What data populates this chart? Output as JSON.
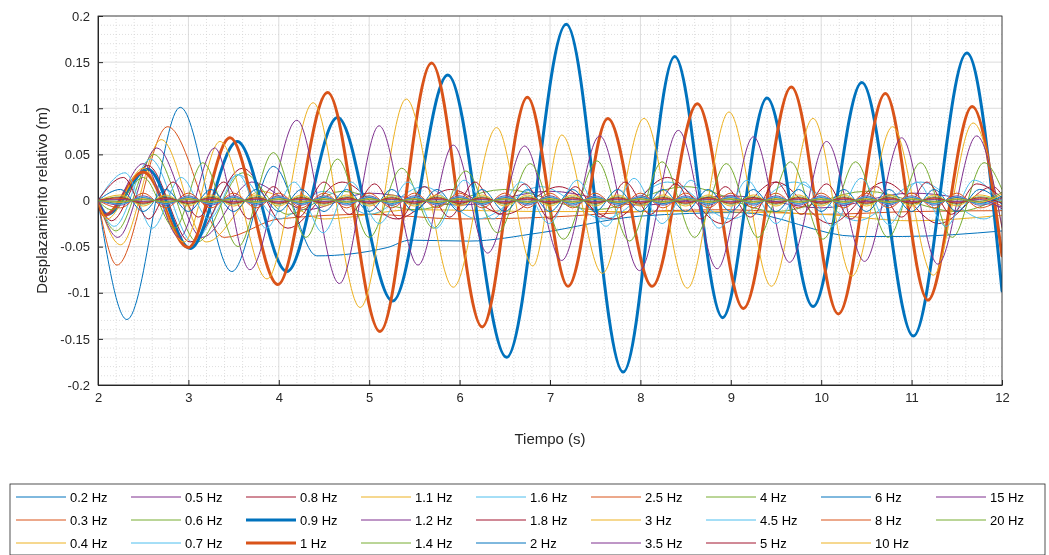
{
  "chart_data": {
    "type": "line",
    "xlabel": "Tiempo (s)",
    "ylabel": "Desplazamiento relativo (m)",
    "xlim": [
      2,
      12
    ],
    "ylim": [
      -0.2,
      0.2
    ],
    "xticks": [
      2,
      3,
      4,
      5,
      6,
      7,
      8,
      9,
      10,
      11,
      12
    ],
    "yticks": [
      -0.2,
      -0.15,
      -0.1,
      -0.05,
      0,
      0.05,
      0.1,
      0.15,
      0.2
    ],
    "grid": true,
    "legend": "bottom",
    "line_style": "solid",
    "marker": "none",
    "x": [
      2,
      2.25,
      2.5,
      2.75,
      3,
      3.25,
      3.5,
      3.75,
      4,
      4.25,
      4.5,
      4.75,
      5,
      5.25,
      5.5,
      5.75,
      6,
      6.25,
      6.5,
      6.75,
      7,
      7.25,
      7.5,
      7.75,
      8,
      8.25,
      8.5,
      8.75,
      9,
      9.25,
      9.5,
      9.75,
      10,
      10.25,
      10.5,
      10.75,
      11,
      11.25,
      11.5,
      11.75,
      12
    ],
    "series": [
      {
        "name": "0.2 Hz",
        "color": "#0072bd",
        "x": [
          2,
          2.32,
          2.91,
          3.48,
          3.94,
          4.42,
          5.2,
          5.45,
          6.1,
          6.89,
          7.99,
          9.1,
          10.4,
          10.9,
          12
        ],
        "values": [
          0,
          -0.129,
          0.101,
          -0.077,
          0.037,
          -0.06,
          -0.051,
          -0.043,
          -0.044,
          -0.035,
          -0.017,
          -0.013,
          -0.039,
          -0.039,
          -0.033
        ]
      },
      {
        "name": "0.3 Hz",
        "color": "#d95319",
        "x": [
          2,
          2.21,
          2.77,
          3.4,
          4.0,
          5,
          6,
          7,
          8,
          9,
          10,
          11,
          12
        ],
        "values": [
          0,
          -0.07,
          0.08,
          -0.04,
          -0.02,
          -0.015,
          -0.02,
          -0.018,
          -0.012,
          -0.01,
          -0.015,
          -0.012,
          -0.011
        ]
      },
      {
        "name": "0.4 Hz",
        "color": "#edb120",
        "x": [
          2,
          2.25,
          2.7,
          3.2,
          3.8,
          4.5,
          5.5,
          7,
          8.5,
          10,
          11,
          12
        ],
        "values": [
          0,
          -0.048,
          0.066,
          -0.045,
          0.01,
          -0.02,
          -0.01,
          -0.012,
          -0.012,
          -0.015,
          -0.022,
          -0.016
        ]
      },
      {
        "name": "0.5 Hz",
        "color": "#7e2f8e",
        "x": [
          2,
          2.22,
          2.65,
          3.15,
          3.7,
          4.3,
          5,
          6,
          7,
          8,
          9,
          10,
          11,
          12
        ],
        "values": [
          0,
          -0.04,
          0.057,
          -0.04,
          0.02,
          -0.01,
          0.008,
          -0.005,
          0.01,
          -0.005,
          0.005,
          -0.008,
          0.008,
          -0.007
        ]
      },
      {
        "name": "0.6 Hz",
        "color": "#77ac30",
        "x": [
          2,
          2.2,
          2.62,
          3.1,
          3.6,
          4.1,
          4.7,
          5.5,
          6.5,
          7.5,
          8.5,
          9.5,
          10.5,
          11.5,
          12
        ],
        "values": [
          0,
          -0.033,
          0.05,
          -0.045,
          0.03,
          -0.015,
          0.01,
          -0.01,
          0.012,
          -0.01,
          0.015,
          -0.012,
          0.01,
          -0.012,
          0.004
        ]
      },
      {
        "name": "0.7 Hz",
        "color": "#4dbeee",
        "x": [
          2,
          2.18,
          2.58,
          3.05,
          3.55,
          4.0,
          4.5,
          5,
          5.6,
          6.2,
          6.9,
          7.6,
          8.3,
          9,
          9.7,
          10.4,
          11.1,
          11.8,
          12
        ],
        "values": [
          0,
          -0.028,
          0.045,
          -0.045,
          0.028,
          -0.02,
          0.01,
          -0.015,
          0.015,
          -0.02,
          0.015,
          -0.02,
          0.02,
          -0.02,
          0.02,
          -0.022,
          0.02,
          -0.02,
          -0.008
        ]
      },
      {
        "name": "0.8 Hz",
        "color": "#a2142f",
        "x": [
          2,
          2.15,
          2.55,
          3.02,
          3.6,
          4.1,
          4.7,
          5.3,
          5.9,
          6.5,
          7.1,
          7.7,
          8.3,
          8.9,
          9.5,
          10.1,
          10.7,
          11.3,
          11.9,
          12
        ],
        "values": [
          0,
          -0.022,
          0.038,
          -0.045,
          0.035,
          -0.03,
          0.02,
          -0.02,
          0.012,
          -0.015,
          0.015,
          -0.02,
          0.025,
          -0.025,
          0.02,
          -0.025,
          0.02,
          -0.025,
          0.015,
          0.006
        ]
      },
      {
        "name": "0.9 Hz",
        "color": "#0072bd",
        "x": [
          2,
          2.1,
          2.55,
          3.02,
          3.54,
          4.09,
          4.65,
          5.26,
          5.87,
          6.52,
          7.18,
          7.81,
          8.38,
          8.91,
          9.4,
          9.91,
          10.45,
          11.02,
          11.61,
          12
        ],
        "values": [
          0,
          -0.015,
          0.034,
          -0.052,
          0.064,
          -0.077,
          0.09,
          -0.109,
          0.136,
          -0.17,
          0.191,
          -0.186,
          0.156,
          -0.127,
          0.111,
          -0.115,
          0.128,
          -0.147,
          0.16,
          -0.098
        ]
      },
      {
        "name": "1 Hz",
        "color": "#d95319",
        "x": [
          2,
          2.07,
          2.5,
          3,
          3.46,
          3.99,
          4.54,
          5.12,
          5.69,
          6.25,
          6.75,
          7.2,
          7.64,
          8.13,
          8.63,
          9.14,
          9.67,
          10.19,
          10.71,
          11.18,
          11.67,
          12
        ],
        "values": [
          0,
          -0.016,
          0.031,
          -0.051,
          0.068,
          -0.091,
          0.117,
          -0.142,
          0.149,
          -0.137,
          0.112,
          -0.093,
          0.089,
          -0.093,
          0.105,
          -0.117,
          0.123,
          -0.123,
          0.116,
          -0.108,
          0.102,
          -0.06
        ]
      },
      {
        "name": "1.1 Hz",
        "color": "#edb120",
        "x": [
          2,
          2.1,
          2.5,
          2.95,
          3.35,
          3.87,
          4.38,
          4.9,
          5.41,
          5.93,
          6.41,
          6.81,
          7.13,
          7.58,
          8.04,
          8.52,
          8.98,
          9.45,
          9.91,
          10.34,
          10.79,
          11.24,
          11.68,
          12
        ],
        "values": [
          0,
          -0.02,
          0.035,
          -0.045,
          0.064,
          -0.085,
          0.106,
          -0.116,
          0.11,
          -0.094,
          0.079,
          -0.071,
          0.071,
          -0.079,
          0.089,
          -0.095,
          0.096,
          -0.093,
          0.089,
          -0.082,
          0.08,
          -0.081,
          0.084,
          -0.03
        ]
      },
      {
        "name": "1.2 Hz",
        "color": "#7e2f8e",
        "x": [
          2,
          2.1,
          2.5,
          2.9,
          3.29,
          3.68,
          4.2,
          4.67,
          5.11,
          5.54,
          5.93,
          6.31,
          6.72,
          7.13,
          7.55,
          7.99,
          8.42,
          8.85,
          9.25,
          9.65,
          10.06,
          10.48,
          10.89,
          11.29,
          11.72,
          12
        ],
        "values": [
          0,
          -0.015,
          0.04,
          -0.04,
          0.057,
          -0.075,
          0.087,
          -0.09,
          0.081,
          -0.07,
          0.06,
          -0.057,
          0.059,
          -0.065,
          0.07,
          -0.076,
          0.076,
          -0.074,
          0.069,
          -0.067,
          0.064,
          -0.066,
          0.068,
          -0.069,
          0.07,
          -0.029
        ]
      },
      {
        "name": "1.4 Hz",
        "color": "#77ac30",
        "x": [
          2,
          2.15,
          2.5,
          2.85,
          3.16,
          3.55,
          3.94,
          4.3,
          4.65,
          5.0,
          5.36,
          5.71,
          6.07,
          6.42,
          6.78,
          7.15,
          7.52,
          7.88,
          8.24,
          8.6,
          8.95,
          9.3,
          9.66,
          10.02,
          10.38,
          10.74,
          11.1,
          11.45,
          11.8,
          12
        ],
        "values": [
          0,
          -0.01,
          0.025,
          -0.03,
          0.041,
          -0.05,
          0.052,
          -0.04,
          0.045,
          -0.04,
          0.035,
          -0.03,
          0.032,
          -0.035,
          0.04,
          -0.042,
          0.043,
          -0.044,
          0.042,
          -0.04,
          0.04,
          -0.04,
          0.042,
          -0.042,
          0.042,
          -0.04,
          0.041,
          -0.04,
          0.041,
          0.012
        ]
      },
      {
        "name": "1.6 Hz",
        "color": "#4dbeee",
        "x": [
          2,
          2.3,
          2.6,
          2.92,
          3.23,
          3.55,
          3.86,
          4.17,
          4.49,
          4.8,
          5.11,
          5.43,
          5.74,
          6.05,
          6.37,
          6.68,
          6.99,
          7.3,
          7.62,
          7.93,
          8.24,
          8.56,
          8.87,
          9.18,
          9.5,
          9.81,
          10.12,
          10.44,
          10.75,
          11.06,
          11.38,
          11.69,
          12
        ],
        "values": [
          0,
          0.03,
          -0.03,
          0.025,
          -0.02,
          0.028,
          -0.03,
          0.02,
          -0.035,
          0.02,
          -0.025,
          0.02,
          -0.03,
          0.022,
          -0.02,
          0.02,
          -0.025,
          0.022,
          -0.028,
          0.024,
          -0.025,
          0.022,
          -0.03,
          0.022,
          -0.025,
          0.02,
          -0.028,
          0.024,
          -0.026,
          0.02,
          -0.028,
          0.022,
          -0.005
        ]
      },
      {
        "name": "1.8 Hz",
        "color": "#a2142f",
        "x": [
          2,
          2.28,
          2.56,
          2.83,
          3.11,
          3.39,
          3.67,
          3.94,
          4.22,
          4.5,
          4.78,
          5.06,
          5.33,
          5.61,
          5.89,
          6.17,
          6.44,
          6.72,
          7,
          7.28,
          7.56,
          7.83,
          8.11,
          8.39,
          8.67,
          8.94,
          9.22,
          9.5,
          9.78,
          10.06,
          10.33,
          10.61,
          10.89,
          11.17,
          11.44,
          11.72,
          12
        ],
        "values": [
          0,
          0.025,
          -0.02,
          0.02,
          -0.018,
          0.02,
          -0.02,
          0.015,
          -0.018,
          0.02,
          -0.015,
          0.018,
          -0.02,
          0.015,
          -0.018,
          0.02,
          -0.015,
          0.018,
          -0.02,
          0.015,
          -0.018,
          0.02,
          -0.015,
          0.018,
          -0.02,
          0.015,
          -0.018,
          0.02,
          -0.015,
          0.018,
          -0.02,
          0.015,
          -0.018,
          0.02,
          -0.015,
          0.018,
          0.003
        ]
      },
      {
        "name": "2 Hz",
        "color": "#0072bd",
        "values": [
          0,
          0.012,
          -0.012,
          0.012,
          -0.012,
          0.012,
          -0.012,
          0.012,
          -0.012,
          0.012,
          -0.012,
          0.012,
          -0.012,
          0.012,
          -0.012,
          0.012,
          -0.012,
          0.012,
          -0.012,
          0.012,
          -0.012,
          0.012,
          -0.012,
          0.012,
          -0.012,
          0.012,
          -0.012,
          0.012,
          -0.012,
          0.012,
          -0.012,
          0.012,
          -0.012,
          0.012,
          -0.012,
          0.012,
          -0.012,
          0.012,
          -0.012,
          0.012,
          -0.004
        ]
      },
      {
        "name": "2.5 Hz",
        "color": "#d95319",
        "values": [
          0,
          -0.008,
          0.008,
          -0.008,
          0.008,
          -0.008,
          0.008,
          -0.008,
          0.008,
          -0.008,
          0.008,
          -0.008,
          0.008,
          -0.008,
          0.008,
          -0.008,
          0.008,
          -0.008,
          0.008,
          -0.008,
          0.008,
          -0.008,
          0.008,
          -0.008,
          0.008,
          -0.008,
          0.008,
          -0.008,
          0.008,
          -0.008,
          0.008,
          -0.008,
          0.008,
          -0.008,
          0.008,
          -0.008,
          0.008,
          -0.008,
          0.008,
          -0.008,
          0.002
        ]
      },
      {
        "name": "3 Hz",
        "color": "#edb120",
        "values": [
          0,
          0.006,
          -0.006,
          0.006,
          -0.006,
          0.006,
          -0.006,
          0.006,
          -0.006,
          0.006,
          -0.006,
          0.006,
          -0.006,
          0.006,
          -0.006,
          0.006,
          -0.006,
          0.006,
          -0.006,
          0.006,
          -0.006,
          0.006,
          -0.006,
          0.006,
          -0.006,
          0.006,
          -0.006,
          0.006,
          -0.006,
          0.006,
          -0.006,
          0.006,
          -0.006,
          0.006,
          -0.006,
          0.006,
          -0.006,
          0.006,
          -0.006,
          0.006,
          -0.002
        ]
      },
      {
        "name": "3.5 Hz",
        "color": "#7e2f8e",
        "values": [
          0,
          -0.005,
          0.005,
          -0.005,
          0.005,
          -0.005,
          0.005,
          -0.005,
          0.005,
          -0.005,
          0.005,
          -0.005,
          0.005,
          -0.005,
          0.005,
          -0.005,
          0.005,
          -0.005,
          0.005,
          -0.005,
          0.005,
          -0.005,
          0.005,
          -0.005,
          0.005,
          -0.005,
          0.005,
          -0.005,
          0.005,
          -0.005,
          0.005,
          -0.005,
          0.005,
          -0.005,
          0.005,
          -0.005,
          0.005,
          -0.005,
          0.005,
          -0.005,
          0.003
        ]
      },
      {
        "name": "4 Hz",
        "color": "#77ac30",
        "values": [
          0,
          0.004,
          -0.004,
          0.004,
          -0.004,
          0.004,
          -0.004,
          0.004,
          -0.004,
          0.004,
          -0.004,
          0.004,
          -0.004,
          0.004,
          -0.004,
          0.004,
          -0.004,
          0.004,
          -0.004,
          0.004,
          -0.004,
          0.004,
          -0.004,
          0.004,
          -0.004,
          0.004,
          -0.004,
          0.004,
          -0.004,
          0.004,
          -0.004,
          0.004,
          -0.004,
          0.004,
          -0.004,
          0.004,
          -0.004,
          0.004,
          -0.004,
          0.004,
          -0.001
        ]
      },
      {
        "name": "4.5 Hz",
        "color": "#4dbeee",
        "values": [
          0,
          -0.004,
          0.004,
          -0.004,
          0.004,
          -0.004,
          0.004,
          -0.004,
          0.004,
          -0.004,
          0.004,
          -0.004,
          0.004,
          -0.004,
          0.004,
          -0.004,
          0.004,
          -0.004,
          0.004,
          -0.004,
          0.004,
          -0.004,
          0.004,
          -0.004,
          0.004,
          -0.004,
          0.004,
          -0.004,
          0.004,
          -0.004,
          0.004,
          -0.004,
          0.004,
          -0.004,
          0.004,
          -0.004,
          0.004,
          -0.004,
          0.004,
          -0.004,
          0.001
        ]
      },
      {
        "name": "5 Hz",
        "color": "#a2142f",
        "values": [
          0,
          0.003,
          -0.003,
          0.003,
          -0.003,
          0.003,
          -0.003,
          0.003,
          -0.003,
          0.003,
          -0.003,
          0.003,
          -0.003,
          0.003,
          -0.003,
          0.003,
          -0.003,
          0.003,
          -0.003,
          0.003,
          -0.003,
          0.003,
          -0.003,
          0.003,
          -0.003,
          0.003,
          -0.003,
          0.003,
          -0.003,
          0.003,
          -0.003,
          0.003,
          -0.003,
          0.003,
          -0.003,
          0.003,
          -0.003,
          0.003,
          -0.003,
          0.003,
          -0.003
        ]
      },
      {
        "name": "6 Hz",
        "color": "#0072bd",
        "values": [
          0,
          -0.003,
          0.003,
          -0.003,
          0.003,
          -0.003,
          0.003,
          -0.003,
          0.003,
          -0.003,
          0.003,
          -0.003,
          0.003,
          -0.003,
          0.003,
          -0.003,
          0.003,
          -0.003,
          0.003,
          -0.003,
          0.003,
          -0.003,
          0.003,
          -0.003,
          0.003,
          -0.003,
          0.003,
          -0.003,
          0.003,
          -0.003,
          0.003,
          -0.003,
          0.003,
          -0.003,
          0.003,
          -0.003,
          0.003,
          -0.003,
          0.003,
          -0.003,
          0.005
        ]
      },
      {
        "name": "8 Hz",
        "color": "#d95319",
        "values": [
          0,
          0.002,
          -0.002,
          0.002,
          -0.002,
          0.002,
          -0.002,
          0.002,
          -0.002,
          0.002,
          -0.002,
          0.002,
          -0.002,
          0.002,
          -0.002,
          0.002,
          -0.002,
          0.002,
          -0.002,
          0.002,
          -0.002,
          0.002,
          -0.002,
          0.002,
          -0.002,
          0.002,
          -0.002,
          0.002,
          -0.002,
          0.002,
          -0.002,
          0.002,
          -0.002,
          0.002,
          -0.002,
          0.002,
          -0.002,
          0.002,
          -0.002,
          0.002,
          -0.006
        ]
      },
      {
        "name": "10 Hz",
        "color": "#edb120",
        "values": [
          0,
          -0.002,
          0.002,
          -0.002,
          0.002,
          -0.002,
          0.002,
          -0.002,
          0.002,
          -0.002,
          0.002,
          -0.002,
          0.002,
          -0.002,
          0.002,
          -0.002,
          0.002,
          -0.002,
          0.002,
          -0.002,
          0.002,
          -0.002,
          0.002,
          -0.002,
          0.002,
          -0.002,
          0.002,
          -0.002,
          0.002,
          -0.002,
          0.002,
          -0.002,
          0.002,
          -0.002,
          0.002,
          -0.002,
          0.002,
          -0.002,
          0.002,
          -0.002,
          0.007
        ]
      },
      {
        "name": "15 Hz",
        "color": "#7e2f8e",
        "values": [
          0,
          0.001,
          -0.001,
          0.001,
          -0.001,
          0.001,
          -0.001,
          0.001,
          -0.001,
          0.001,
          -0.001,
          0.001,
          -0.001,
          0.001,
          -0.001,
          0.001,
          -0.001,
          0.001,
          -0.001,
          0.001,
          -0.001,
          0.001,
          -0.001,
          0.001,
          -0.001,
          0.001,
          -0.001,
          0.001,
          -0.001,
          0.001,
          -0.001,
          0.001,
          -0.001,
          0.001,
          -0.001,
          0.001,
          -0.001,
          0.001,
          -0.001,
          0.001,
          -0.009
        ]
      },
      {
        "name": "20 Hz",
        "color": "#77ac30",
        "values": [
          0,
          -0.001,
          0.001,
          -0.001,
          0.001,
          -0.001,
          0.001,
          -0.001,
          0.001,
          -0.001,
          0.001,
          -0.001,
          0.001,
          -0.001,
          0.001,
          -0.001,
          0.001,
          -0.001,
          0.001,
          -0.001,
          0.001,
          -0.001,
          0.001,
          -0.001,
          0.001,
          -0.001,
          0.001,
          -0.001,
          0.001,
          -0.001,
          0.001,
          -0.001,
          0.001,
          -0.001,
          0.001,
          -0.001,
          0.001,
          -0.001,
          0.001,
          -0.001,
          0.009
        ]
      }
    ]
  }
}
